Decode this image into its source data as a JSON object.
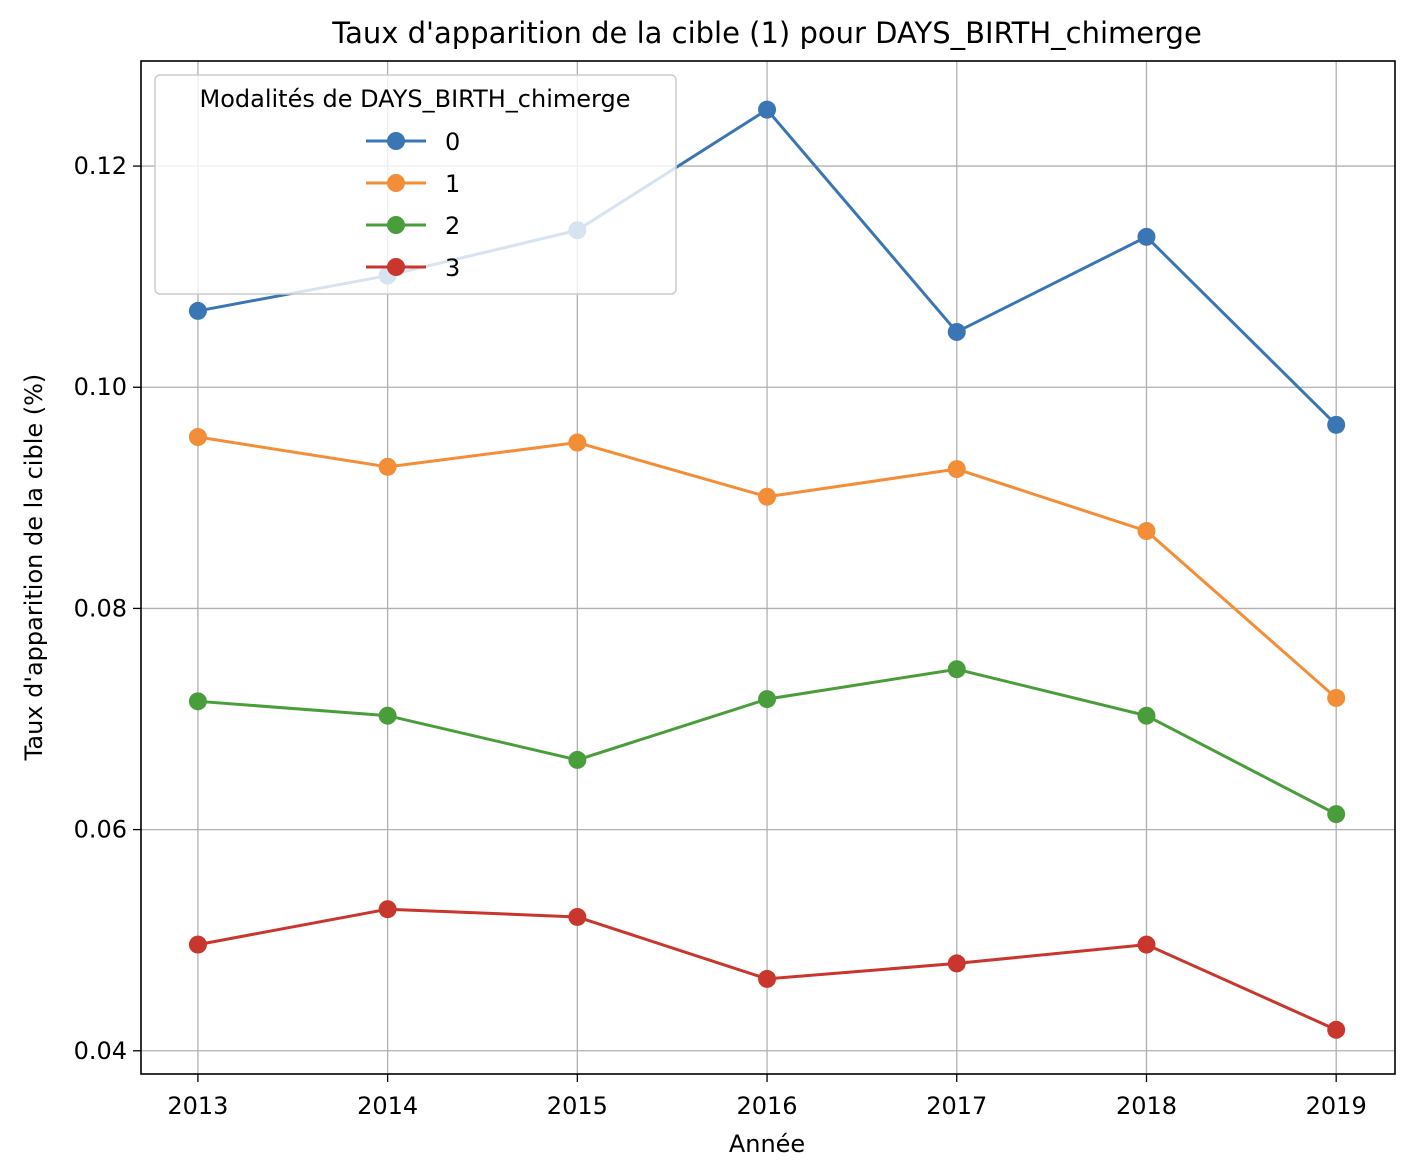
{
  "chart_data": {
    "type": "line",
    "title": "Taux d'apparition de la cible (1) pour DAYS_BIRTH_chimerge",
    "xlabel": "Année",
    "ylabel": "Taux d'apparition de la cible (%)",
    "x": [
      2013,
      2014,
      2015,
      2016,
      2017,
      2018,
      2019
    ],
    "x_ticks": [
      "2013",
      "2014",
      "2015",
      "2016",
      "2017",
      "2018",
      "2019"
    ],
    "y_ticks": [
      "0.04",
      "0.06",
      "0.08",
      "0.10",
      "0.12"
    ],
    "y_tick_values": [
      0.04,
      0.06,
      0.08,
      0.1,
      0.12
    ],
    "xlim": [
      2012.7,
      2019.31
    ],
    "ylim": [
      0.0379,
      0.1295
    ],
    "grid": true,
    "legend": {
      "title": "Modalités de DAYS_BIRTH_chimerge",
      "placement": "upper-left"
    },
    "series": [
      {
        "name": "0",
        "color": "#3a76b3",
        "values": [
          0.1069,
          0.1101,
          0.1142,
          0.1251,
          0.105,
          0.1136,
          0.0966
        ]
      },
      {
        "name": "1",
        "color": "#f28e38",
        "values": [
          0.0955,
          0.0928,
          0.095,
          0.0901,
          0.0926,
          0.087,
          0.0719
        ]
      },
      {
        "name": "2",
        "color": "#4a9d3b",
        "values": [
          0.0716,
          0.0703,
          0.0663,
          0.0718,
          0.0745,
          0.0703,
          0.0614
        ]
      },
      {
        "name": "3",
        "color": "#c9362d",
        "values": [
          0.0496,
          0.0528,
          0.0521,
          0.0465,
          0.0479,
          0.0496,
          0.0419
        ]
      }
    ]
  }
}
